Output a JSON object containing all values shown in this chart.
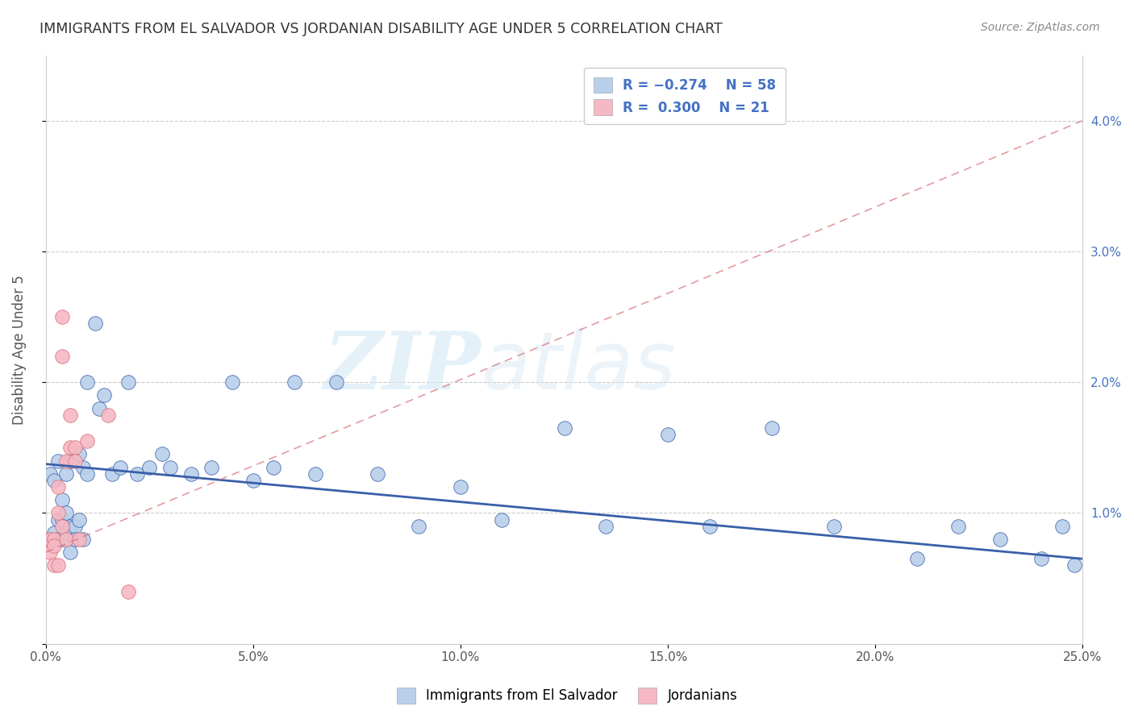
{
  "title": "IMMIGRANTS FROM EL SALVADOR VS JORDANIAN DISABILITY AGE UNDER 5 CORRELATION CHART",
  "source": "Source: ZipAtlas.com",
  "ylabel": "Disability Age Under 5",
  "xlim": [
    0.0,
    0.25
  ],
  "ylim": [
    0.0,
    0.045
  ],
  "xticks": [
    0.0,
    0.05,
    0.1,
    0.15,
    0.2,
    0.25
  ],
  "yticks": [
    0.0,
    0.01,
    0.02,
    0.03,
    0.04
  ],
  "ytick_labels_right": [
    "",
    "1.0%",
    "2.0%",
    "3.0%",
    "4.0%"
  ],
  "xtick_labels": [
    "0.0%",
    "5.0%",
    "10.0%",
    "15.0%",
    "20.0%",
    "25.0%"
  ],
  "legend_labels": [
    "Immigrants from El Salvador",
    "Jordanians"
  ],
  "color_blue": "#b8d0ea",
  "color_pink": "#f5b8c4",
  "line_color_blue": "#3a5fa8",
  "line_color_pink": "#d9707a",
  "watermark_zip": "ZIP",
  "watermark_atlas": "atlas",
  "blue_x": [
    0.001,
    0.002,
    0.002,
    0.003,
    0.003,
    0.003,
    0.004,
    0.004,
    0.004,
    0.005,
    0.005,
    0.005,
    0.006,
    0.006,
    0.006,
    0.007,
    0.007,
    0.007,
    0.008,
    0.008,
    0.009,
    0.009,
    0.01,
    0.01,
    0.012,
    0.013,
    0.014,
    0.016,
    0.018,
    0.02,
    0.022,
    0.025,
    0.028,
    0.03,
    0.035,
    0.04,
    0.045,
    0.05,
    0.055,
    0.06,
    0.065,
    0.07,
    0.08,
    0.09,
    0.1,
    0.11,
    0.125,
    0.135,
    0.15,
    0.16,
    0.175,
    0.19,
    0.21,
    0.22,
    0.23,
    0.24,
    0.245,
    0.248
  ],
  "blue_y": [
    0.013,
    0.0125,
    0.0085,
    0.014,
    0.0095,
    0.008,
    0.0095,
    0.011,
    0.008,
    0.0085,
    0.013,
    0.01,
    0.014,
    0.009,
    0.007,
    0.014,
    0.009,
    0.008,
    0.0145,
    0.0095,
    0.0135,
    0.008,
    0.02,
    0.013,
    0.0245,
    0.018,
    0.019,
    0.013,
    0.0135,
    0.02,
    0.013,
    0.0135,
    0.0145,
    0.0135,
    0.013,
    0.0135,
    0.02,
    0.0125,
    0.0135,
    0.02,
    0.013,
    0.02,
    0.013,
    0.009,
    0.012,
    0.0095,
    0.0165,
    0.009,
    0.016,
    0.009,
    0.0165,
    0.009,
    0.0065,
    0.009,
    0.008,
    0.0065,
    0.009,
    0.006
  ],
  "pink_x": [
    0.001,
    0.001,
    0.002,
    0.002,
    0.002,
    0.003,
    0.003,
    0.003,
    0.004,
    0.004,
    0.004,
    0.005,
    0.005,
    0.006,
    0.006,
    0.007,
    0.007,
    0.008,
    0.01,
    0.015,
    0.02
  ],
  "pink_y": [
    0.007,
    0.008,
    0.008,
    0.0075,
    0.006,
    0.012,
    0.01,
    0.006,
    0.025,
    0.022,
    0.009,
    0.014,
    0.008,
    0.0175,
    0.015,
    0.015,
    0.014,
    0.008,
    0.0155,
    0.0175,
    0.004
  ],
  "blue_line_x0": 0.0,
  "blue_line_y0": 0.01375,
  "blue_line_x1": 0.25,
  "blue_line_y1": 0.0065,
  "pink_line_x0": 0.0,
  "pink_line_y0": 0.007,
  "pink_line_x1": 0.25,
  "pink_line_y1": 0.04
}
